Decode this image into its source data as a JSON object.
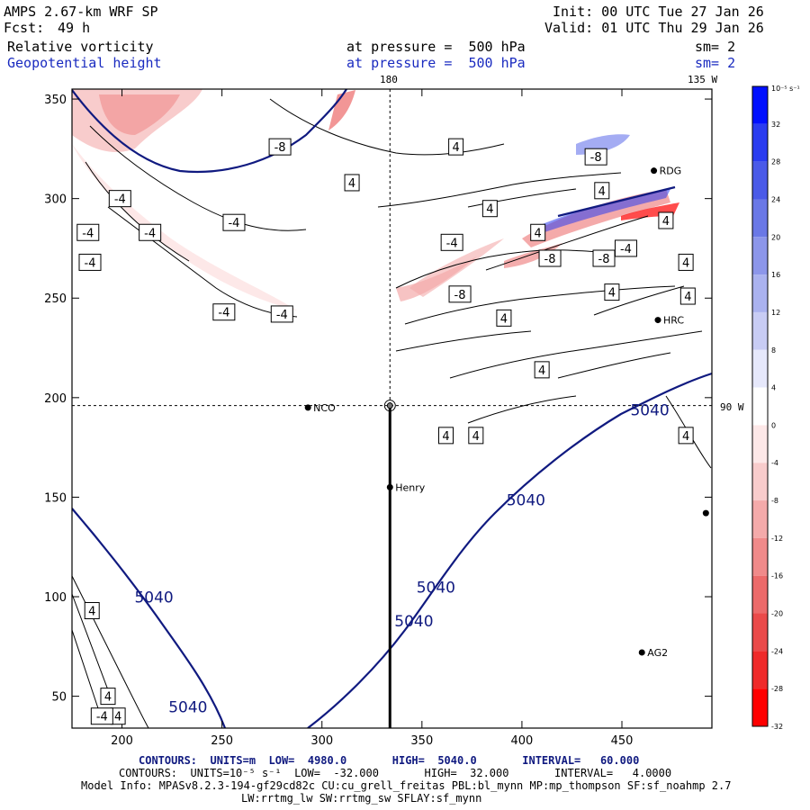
{
  "header": {
    "model": "AMPS 2.67-km WRF SP",
    "fcst_label": "Fcst:",
    "fcst_value": "49 h",
    "init": "Init: 00 UTC Tue 27 Jan 26",
    "valid": "Valid: 01 UTC Thu 29 Jan 26",
    "field1": "Relative vorticity",
    "field1_level": "at pressure =  500 hPa",
    "field1_sm": "sm= 2",
    "field2": "Geopotential height",
    "field2_level": "at pressure =  500 hPa",
    "field2_sm": "sm= 2"
  },
  "map": {
    "top_label_left": "180",
    "top_label_right": "135 W",
    "right_label": "90 W"
  },
  "chart_data": {
    "type": "contour-map",
    "x_ticks": [
      200,
      250,
      300,
      350,
      400,
      450
    ],
    "y_ticks": [
      50,
      100,
      150,
      200,
      250,
      300,
      350
    ],
    "xlim": [
      175,
      495
    ],
    "ylim": [
      34,
      355
    ],
    "stations": [
      {
        "name": "NCO",
        "x": 293,
        "y": 195
      },
      {
        "name": "Henry",
        "x": 334,
        "y": 155
      },
      {
        "name": "HRC",
        "x": 468,
        "y": 239
      },
      {
        "name": "AG2",
        "x": 460,
        "y": 72
      },
      {
        "name": "RDG",
        "x": 466,
        "y": 314
      },
      {
        "name": "",
        "x": 492,
        "y": 142
      }
    ],
    "section_point": {
      "x": 334,
      "y": 196
    },
    "height_labels": [
      {
        "text": "5040",
        "x": 464,
        "y": 191
      },
      {
        "text": "5040",
        "x": 402,
        "y": 146
      },
      {
        "text": "5040",
        "x": 357,
        "y": 102
      },
      {
        "text": "5040",
        "x": 346,
        "y": 85
      },
      {
        "text": "5040",
        "x": 216,
        "y": 97
      },
      {
        "text": "5040",
        "x": 233,
        "y": 42
      }
    ],
    "vorticity_labels": [
      {
        "text": "-8",
        "x": 279,
        "y": 326
      },
      {
        "text": "-4",
        "x": 199,
        "y": 300
      },
      {
        "text": "-4",
        "x": 256,
        "y": 288
      },
      {
        "text": "-4",
        "x": 183,
        "y": 283
      },
      {
        "text": "-4",
        "x": 214,
        "y": 283
      },
      {
        "text": "-4",
        "x": 184,
        "y": 268
      },
      {
        "text": "-4",
        "x": 251,
        "y": 243
      },
      {
        "text": "-4",
        "x": 280,
        "y": 242
      },
      {
        "text": "4",
        "x": 315,
        "y": 308
      },
      {
        "text": "4",
        "x": 367,
        "y": 326
      },
      {
        "text": "4",
        "x": 384,
        "y": 295
      },
      {
        "text": "4",
        "x": 408,
        "y": 283
      },
      {
        "text": "-4",
        "x": 365,
        "y": 278
      },
      {
        "text": "-8",
        "x": 369,
        "y": 252
      },
      {
        "text": "-8",
        "x": 414,
        "y": 270
      },
      {
        "text": "-8",
        "x": 437,
        "y": 321
      },
      {
        "text": "4",
        "x": 440,
        "y": 304
      },
      {
        "text": "-8",
        "x": 441,
        "y": 270
      },
      {
        "text": "-4",
        "x": 452,
        "y": 275
      },
      {
        "text": "4",
        "x": 472,
        "y": 289
      },
      {
        "text": "4",
        "x": 482,
        "y": 268
      },
      {
        "text": "4",
        "x": 483,
        "y": 251
      },
      {
        "text": "4",
        "x": 445,
        "y": 253
      },
      {
        "text": "4",
        "x": 391,
        "y": 240
      },
      {
        "text": "4",
        "x": 410,
        "y": 214
      },
      {
        "text": "4",
        "x": 362,
        "y": 181
      },
      {
        "text": "4",
        "x": 377,
        "y": 181
      },
      {
        "text": "4",
        "x": 482,
        "y": 181
      },
      {
        "text": "4",
        "x": 185,
        "y": 93
      },
      {
        "text": "4",
        "x": 193,
        "y": 50
      },
      {
        "text": "4",
        "x": 198,
        "y": 40
      },
      {
        "text": "-4",
        "x": 190,
        "y": 40
      }
    ],
    "colorbar": {
      "unit": "10⁻⁵ s⁻¹",
      "labels": [
        "32",
        "28",
        "24",
        "20",
        "16",
        "12",
        "8",
        "4",
        "0",
        "-4",
        "-8",
        "-12",
        "-16",
        "-20",
        "-24",
        "-28",
        "-32"
      ],
      "colors": [
        "#0010ff",
        "#2a3cf0",
        "#4a5ae8",
        "#6a78e6",
        "#8c96ea",
        "#aab2ef",
        "#c8ccf4",
        "#e6e8fb",
        "#ffffff",
        "#fde8e8",
        "#f8cccc",
        "#f4aaaa",
        "#f08a8a",
        "#ec6a6a",
        "#ea4a4a",
        "#ef2a2a",
        "#ff0000"
      ]
    }
  },
  "footer": {
    "line1": "CONTOURS:  UNITS=m  LOW=  4980.0       HIGH=  5040.0       INTERVAL=   60.000",
    "line2": "CONTOURS:  UNITS=10⁻⁵ s⁻¹  LOW=  -32.000       HIGH=  32.000       INTERVAL=   4.0000",
    "line3": "Model Info: MPASv8.2.3-194-gf29cd82c CU:cu_grell_freitas PBL:bl_mynn MP:mp_thompson SF:sf_noahmp 2.7",
    "line4": "LW:rrtmg_lw SW:rrtmg_sw SFLAY:sf_mynn"
  }
}
